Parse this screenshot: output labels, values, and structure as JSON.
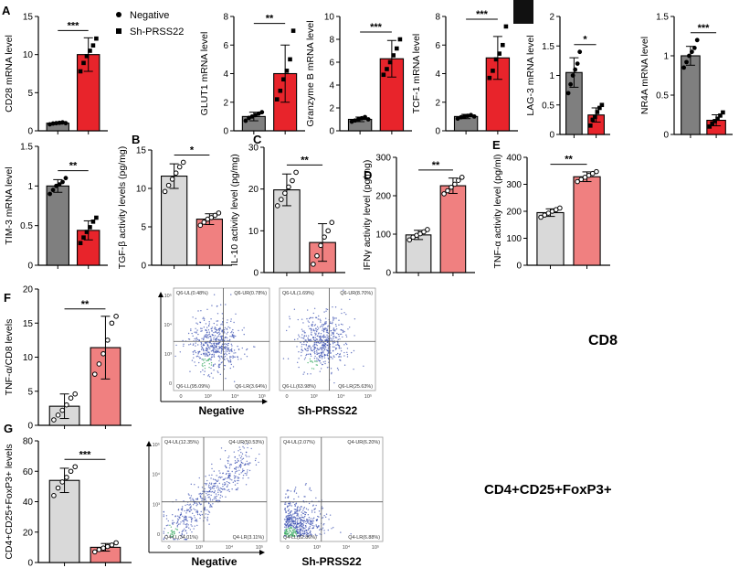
{
  "legend": {
    "items": [
      {
        "label": "Negative",
        "color": "#7f7f7f",
        "marker": "circle"
      },
      {
        "label": "Sh-PRSS22",
        "color": "#e8242b",
        "marker": "square"
      }
    ]
  },
  "colors": {
    "gray_dark": "#7f7f7f",
    "red": "#e8242b",
    "gray_light": "#d9d9d9",
    "salmon": "#f08080",
    "flow_dot": "#3a4fb0",
    "flow_core": "#2fa65a"
  },
  "chart_data": [
    {
      "id": "cd28",
      "panel": "A",
      "type": "bar",
      "ylabel": "CD28 mRNA level",
      "ylim": [
        0,
        15
      ],
      "yticks": [
        0,
        5,
        10,
        15
      ],
      "series": [
        {
          "name": "Negative",
          "value": 1.0,
          "err": 0.12,
          "points": [
            0.85,
            0.95,
            1.0,
            1.05,
            1.1,
            1.0
          ]
        },
        {
          "name": "Sh-PRSS22",
          "value": 10.0,
          "err": 2.2,
          "points": [
            7.8,
            8.9,
            9.8,
            10.5,
            11.2,
            12.1
          ]
        }
      ],
      "sig": "***"
    },
    {
      "id": "glut1",
      "type": "bar",
      "ylabel": "GLUT1 mRNA level",
      "ylim": [
        0,
        8
      ],
      "yticks": [
        0,
        2,
        4,
        6,
        8
      ],
      "series": [
        {
          "name": "Negative",
          "value": 1.0,
          "err": 0.3,
          "points": [
            0.7,
            0.9,
            1.0,
            1.1,
            1.2,
            1.3
          ]
        },
        {
          "name": "Sh-PRSS22",
          "value": 4.0,
          "err": 2.0,
          "points": [
            2.2,
            2.8,
            3.6,
            4.2,
            5.0,
            7.0
          ]
        }
      ],
      "sig": "**"
    },
    {
      "id": "granzyme",
      "type": "bar",
      "ylabel": "Granzyme B mRNA level",
      "ylim": [
        0,
        10
      ],
      "yticks": [
        0,
        2,
        4,
        6,
        8,
        10
      ],
      "series": [
        {
          "name": "Negative",
          "value": 1.0,
          "err": 0.2,
          "points": [
            0.8,
            0.9,
            1.0,
            1.1,
            1.2,
            1.0
          ]
        },
        {
          "name": "Sh-PRSS22",
          "value": 6.3,
          "err": 1.6,
          "points": [
            4.9,
            5.4,
            6.0,
            6.6,
            7.2,
            8.0
          ]
        }
      ],
      "sig": "***"
    },
    {
      "id": "tcf1",
      "type": "bar",
      "ylabel": "TCF-1 mRNA level",
      "ylim": [
        0,
        8
      ],
      "yticks": [
        0,
        2,
        4,
        6,
        8
      ],
      "series": [
        {
          "name": "Negative",
          "value": 1.0,
          "err": 0.15,
          "points": [
            0.85,
            0.95,
            1.0,
            1.05,
            1.1,
            1.0
          ]
        },
        {
          "name": "Sh-PRSS22",
          "value": 5.1,
          "err": 1.5,
          "points": [
            3.7,
            4.2,
            5.0,
            5.4,
            6.0,
            7.3
          ]
        }
      ],
      "sig": "***"
    },
    {
      "id": "lag3",
      "type": "bar",
      "ylabel": "LAG-3 mRNA level",
      "ylim": [
        0,
        2.0
      ],
      "yticks": [
        0,
        0.5,
        1.0,
        1.5,
        2.0
      ],
      "series": [
        {
          "name": "Negative",
          "value": 1.05,
          "err": 0.25,
          "points": [
            0.7,
            0.85,
            1.0,
            1.1,
            1.2,
            1.4
          ]
        },
        {
          "name": "Sh-PRSS22",
          "value": 0.33,
          "err": 0.12,
          "points": [
            0.15,
            0.25,
            0.3,
            0.38,
            0.45,
            0.5
          ]
        }
      ],
      "sig": "*"
    },
    {
      "id": "nr4a",
      "type": "bar",
      "ylabel": "NR4A mRNA level",
      "ylim": [
        0,
        1.5
      ],
      "yticks": [
        0,
        0.5,
        1.0,
        1.5
      ],
      "series": [
        {
          "name": "Negative",
          "value": 1.0,
          "err": 0.12,
          "points": [
            0.85,
            0.92,
            1.0,
            1.05,
            1.1,
            1.2
          ]
        },
        {
          "name": "Sh-PRSS22",
          "value": 0.18,
          "err": 0.07,
          "points": [
            0.1,
            0.14,
            0.17,
            0.2,
            0.24,
            0.28
          ]
        }
      ],
      "sig": "***"
    },
    {
      "id": "tim3",
      "type": "bar",
      "ylabel": "TIM-3 mRNA level",
      "ylim": [
        0,
        1.5
      ],
      "yticks": [
        0,
        0.5,
        1.0,
        1.5
      ],
      "series": [
        {
          "name": "Negative",
          "value": 1.0,
          "err": 0.08,
          "points": [
            0.9,
            0.95,
            1.0,
            1.02,
            1.05,
            1.1
          ]
        },
        {
          "name": "Sh-PRSS22",
          "value": 0.44,
          "err": 0.12,
          "points": [
            0.28,
            0.35,
            0.42,
            0.48,
            0.55,
            0.6
          ]
        }
      ],
      "sig": "**"
    },
    {
      "id": "tgfb",
      "panel": "B",
      "type": "bar",
      "ylabel": "TGF-β activity levels (pg/mg)",
      "ylim": [
        0,
        15
      ],
      "yticks": [
        0,
        5,
        10,
        15
      ],
      "series": [
        {
          "name": "Negative",
          "value": 11.6,
          "err": 1.6,
          "points": [
            9.6,
            10.4,
            11.2,
            12.0,
            12.8,
            13.4
          ]
        },
        {
          "name": "Sh-PRSS22",
          "value": 6.0,
          "err": 0.7,
          "points": [
            5.2,
            5.6,
            6.0,
            6.2,
            6.5,
            6.8
          ]
        }
      ],
      "sig": "*"
    },
    {
      "id": "il10",
      "panel": "C",
      "type": "bar",
      "ylabel": "IL-10 activity level (pg/mg)",
      "ylim": [
        0,
        30
      ],
      "yticks": [
        0,
        10,
        20,
        30
      ],
      "series": [
        {
          "name": "Negative",
          "value": 19.8,
          "err": 3.8,
          "points": [
            16.0,
            17.5,
            19.0,
            20.5,
            22.0,
            24.0
          ]
        },
        {
          "name": "Sh-PRSS22",
          "value": 7.2,
          "err": 4.5,
          "points": [
            2.0,
            4.0,
            6.5,
            8.5,
            10.0,
            12.0
          ]
        }
      ],
      "sig": "**"
    },
    {
      "id": "ifng",
      "panel": "D",
      "type": "bar",
      "ylabel": "IFNγ activity level (pg/mg)",
      "ylim": [
        0,
        300
      ],
      "yticks": [
        0,
        100,
        200,
        300
      ],
      "series": [
        {
          "name": "Negative",
          "value": 98,
          "err": 12,
          "points": [
            85,
            92,
            97,
            101,
            106,
            112
          ]
        },
        {
          "name": "Sh-PRSS22",
          "value": 226,
          "err": 20,
          "points": [
            205,
            213,
            222,
            230,
            240,
            248
          ]
        }
      ],
      "sig": "**"
    },
    {
      "id": "tnfa_e",
      "panel": "E",
      "type": "bar",
      "ylabel": "TNF-α activity level (pg/ml)",
      "ylim": [
        0,
        400
      ],
      "yticks": [
        0,
        100,
        200,
        300,
        400
      ],
      "series": [
        {
          "name": "Negative",
          "value": 195,
          "err": 14,
          "points": [
            178,
            186,
            193,
            200,
            206,
            212
          ]
        },
        {
          "name": "Sh-PRSS22",
          "value": 328,
          "err": 18,
          "points": [
            310,
            318,
            326,
            333,
            340,
            347
          ]
        }
      ],
      "sig": "**"
    },
    {
      "id": "tnfcd8",
      "panel": "F",
      "type": "bar",
      "ylabel": "TNF-α/CD8 levels",
      "ylim": [
        0,
        20
      ],
      "yticks": [
        0,
        5,
        10,
        15,
        20
      ],
      "series": [
        {
          "name": "Negative",
          "value": 2.8,
          "err": 1.8,
          "points": [
            0.8,
            1.5,
            2.2,
            3.0,
            4.0,
            4.6
          ]
        },
        {
          "name": "Sh-PRSS22",
          "value": 11.4,
          "err": 4.6,
          "points": [
            7.5,
            9.0,
            10.5,
            12.5,
            15.0,
            16.0
          ]
        }
      ],
      "sig": "**"
    },
    {
      "id": "treg",
      "panel": "G",
      "type": "bar",
      "ylabel": "CD4+CD25+FoxP3+ levels",
      "ylim": [
        0,
        80
      ],
      "yticks": [
        0,
        20,
        40,
        60,
        80
      ],
      "series": [
        {
          "name": "Negative",
          "value": 54,
          "err": 8,
          "points": [
            44,
            49,
            53,
            56,
            60,
            63
          ]
        },
        {
          "name": "Sh-PRSS22",
          "value": 10,
          "err": 2.5,
          "points": [
            7,
            8.5,
            9.5,
            10.5,
            11.5,
            13
          ]
        }
      ],
      "sig": "***"
    },
    {
      "id": "flow_cd8",
      "type": "scatter",
      "title": "CD8",
      "plots": [
        {
          "name": "Negative",
          "quadrants": {
            "ul": "Q6-UL(0.48%)",
            "ur": "Q6-UR(0.78%)",
            "ll": "Q6-LL(95.09%)",
            "lr": "Q6-LR(3.64%)"
          }
        },
        {
          "name": "Sh-PRSS22",
          "quadrants": {
            "ul": "Q6-UL(1.69%)",
            "ur": "Q6-UR(8.70%)",
            "ll": "Q6-LL(63.98%)",
            "lr": "Q6-LR(25.63%)"
          }
        }
      ],
      "axis_ticks": [
        "0",
        "10³",
        "10⁴",
        "10⁵"
      ]
    },
    {
      "id": "flow_treg",
      "type": "scatter",
      "title": "CD4+CD25+FoxP3+",
      "plots": [
        {
          "name": "Negative",
          "quadrants": {
            "ul": "Q4-UL(12.35%)",
            "ur": "Q4-UR(50.53%)",
            "ll": "Q4-LL(34.01%)",
            "lr": "Q4-LR(3.11%)"
          }
        },
        {
          "name": "Sh-PRSS22",
          "quadrants": {
            "ul": "Q4-UL(2.07%)",
            "ur": "Q4-UR(6.20%)",
            "ll": "Q4-LL(82.86%)",
            "lr": "Q4-LR(6.88%)"
          }
        }
      ],
      "axis_ticks": [
        "0",
        "10³",
        "10⁴",
        "10⁵"
      ]
    }
  ]
}
